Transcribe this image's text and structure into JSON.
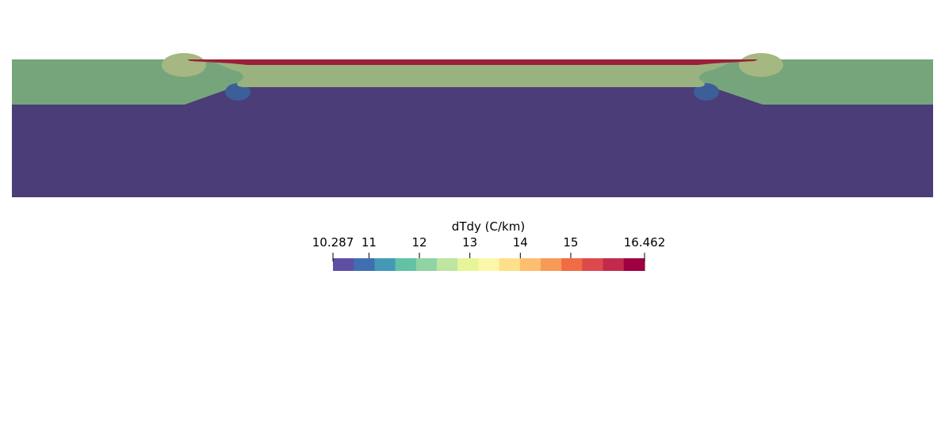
{
  "colorbar": {
    "title": "dTdy (C/km)",
    "min_label": "10.287",
    "max_label": "16.462",
    "min": 10.287,
    "max": 16.462,
    "ticks": [
      {
        "value": 11,
        "label": "11"
      },
      {
        "value": 12,
        "label": "12"
      },
      {
        "value": 13,
        "label": "13"
      },
      {
        "value": 14,
        "label": "14"
      },
      {
        "value": 15,
        "label": "15"
      }
    ],
    "bands": [
      "#5e4fa2",
      "#3f6fb0",
      "#4399b6",
      "#63c2a5",
      "#91d3a4",
      "#bfe5a0",
      "#e6f598",
      "#fbf7a8",
      "#fee08b",
      "#fdbe6f",
      "#f89a58",
      "#ef6c45",
      "#dc494c",
      "#c12a4b",
      "#9e0142"
    ]
  },
  "field_colors": {
    "lower_domain": "#4b3d77",
    "upper_layer": "#76a57b",
    "central_layer": "#9ab27f",
    "lens_highlight": "#a5b882",
    "top_rim": "#9b1f39",
    "low_pocket": "#3c5f99"
  }
}
